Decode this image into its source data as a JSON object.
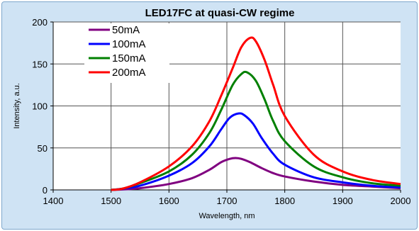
{
  "chart_data": {
    "type": "line",
    "title": "LED17FC at quasi-CW regime",
    "xlabel": "Wavelength, nm",
    "ylabel": "Intensity, a.u.",
    "xlim": [
      1400,
      2000
    ],
    "ylim": [
      0,
      200
    ],
    "x_ticks": [
      "1400",
      "1500",
      "1600",
      "1700",
      "1800",
      "1900",
      "2000"
    ],
    "y_ticks": [
      "0",
      "50",
      "100",
      "150",
      "200"
    ],
    "grid": "vertical lines at x ticks, horizontal lines at y ticks",
    "legend_position": "top-left",
    "series": [
      {
        "name": "50mA",
        "color": "#800080",
        "points": [
          [
            1500,
            0
          ],
          [
            1520,
            0.5
          ],
          [
            1550,
            2
          ],
          [
            1600,
            7
          ],
          [
            1640,
            14
          ],
          [
            1670,
            24
          ],
          [
            1690,
            33
          ],
          [
            1705,
            37
          ],
          [
            1715,
            38
          ],
          [
            1725,
            37
          ],
          [
            1740,
            33
          ],
          [
            1760,
            26
          ],
          [
            1780,
            20
          ],
          [
            1800,
            16
          ],
          [
            1850,
            10
          ],
          [
            1900,
            6
          ],
          [
            1950,
            4
          ],
          [
            2000,
            2
          ]
        ]
      },
      {
        "name": "100mA",
        "color": "#0000ff",
        "points": [
          [
            1500,
            0
          ],
          [
            1520,
            1.5
          ],
          [
            1550,
            5
          ],
          [
            1600,
            17
          ],
          [
            1640,
            32
          ],
          [
            1670,
            52
          ],
          [
            1690,
            72
          ],
          [
            1705,
            86
          ],
          [
            1720,
            91
          ],
          [
            1730,
            89
          ],
          [
            1745,
            79
          ],
          [
            1760,
            62
          ],
          [
            1780,
            43
          ],
          [
            1800,
            30
          ],
          [
            1850,
            15
          ],
          [
            1900,
            9
          ],
          [
            1950,
            5
          ],
          [
            2000,
            3
          ]
        ]
      },
      {
        "name": "150mA",
        "color": "#008000",
        "points": [
          [
            1500,
            0
          ],
          [
            1520,
            1.5
          ],
          [
            1550,
            8
          ],
          [
            1600,
            22
          ],
          [
            1640,
            42
          ],
          [
            1670,
            68
          ],
          [
            1690,
            95
          ],
          [
            1710,
            125
          ],
          [
            1725,
            138
          ],
          [
            1735,
            140
          ],
          [
            1750,
            130
          ],
          [
            1765,
            108
          ],
          [
            1780,
            82
          ],
          [
            1800,
            58
          ],
          [
            1850,
            28
          ],
          [
            1900,
            15
          ],
          [
            1950,
            8
          ],
          [
            2000,
            5
          ]
        ]
      },
      {
        "name": "200mA",
        "color": "#ff0000",
        "points": [
          [
            1500,
            0
          ],
          [
            1520,
            1.5
          ],
          [
            1550,
            9
          ],
          [
            1600,
            28
          ],
          [
            1640,
            52
          ],
          [
            1670,
            82
          ],
          [
            1690,
            112
          ],
          [
            1710,
            145
          ],
          [
            1725,
            170
          ],
          [
            1740,
            181
          ],
          [
            1750,
            177
          ],
          [
            1765,
            155
          ],
          [
            1780,
            125
          ],
          [
            1800,
            88
          ],
          [
            1850,
            42
          ],
          [
            1900,
            22
          ],
          [
            1950,
            12
          ],
          [
            2000,
            7
          ]
        ]
      }
    ]
  }
}
